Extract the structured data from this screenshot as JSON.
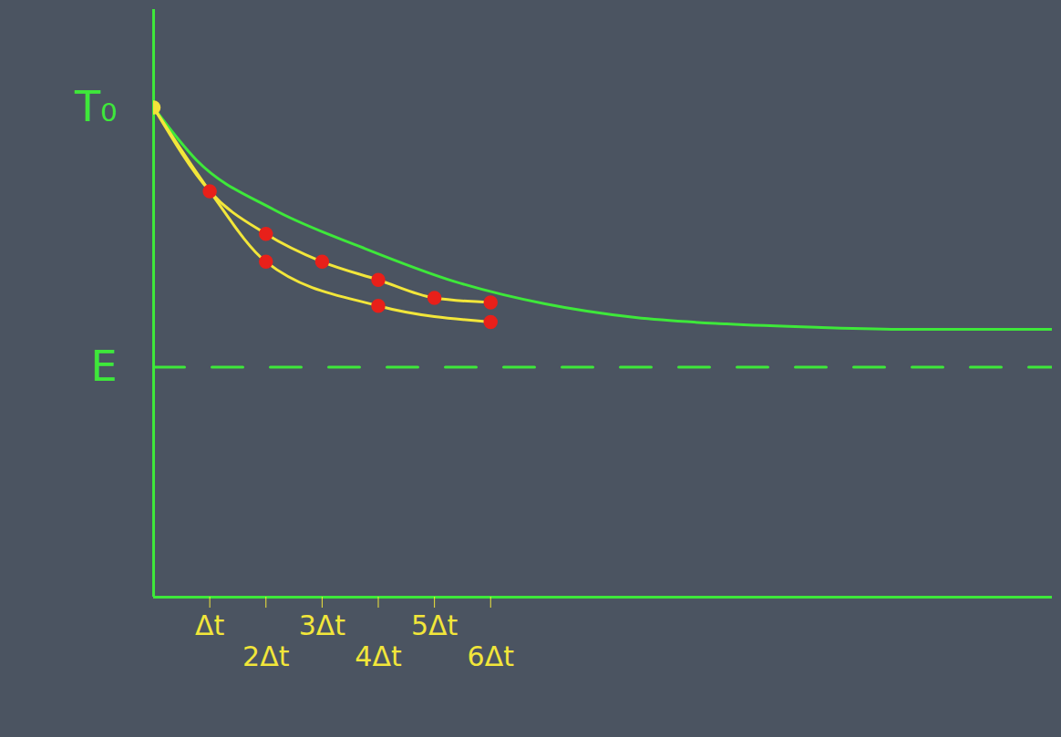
{
  "chart_data": {
    "type": "line",
    "xlim": [
      0,
      16
    ],
    "xticks": [
      {
        "value": 1,
        "label": "Δt"
      },
      {
        "value": 2,
        "label": "2Δt"
      },
      {
        "value": 3,
        "label": "3Δt"
      },
      {
        "value": 4,
        "label": "4Δt"
      },
      {
        "value": 5,
        "label": "5Δt"
      },
      {
        "value": 6,
        "label": "6Δt"
      }
    ],
    "ylim": [
      0,
      12
    ],
    "yticks": [
      {
        "value": 10,
        "label": "T₀"
      },
      {
        "value": 4.7,
        "label": "E"
      }
    ],
    "grid": false,
    "series": [
      {
        "type": "line",
        "color": "#3ee83a",
        "x": [
          0,
          0.76,
          2.13,
          3.74,
          5.35,
          6.97,
          8.58,
          10.2,
          11.8,
          13.4,
          16
        ],
        "values": [
          10,
          8.93,
          7.92,
          7.13,
          6.45,
          5.99,
          5.71,
          5.58,
          5.51,
          5.47,
          5.47
        ]
      },
      {
        "type": "line",
        "color": "#3ee83a",
        "line_style": "dashed",
        "x": [
          0,
          16
        ],
        "values": [
          4.7,
          4.7
        ]
      },
      {
        "type": "line",
        "color": "#f2e63a",
        "x": [
          0,
          1,
          2,
          3,
          4,
          5,
          6
        ],
        "values": [
          10,
          8.29,
          7.42,
          6.85,
          6.48,
          6.11,
          6.02
        ]
      },
      {
        "type": "line",
        "color": "#f2e63a",
        "x": [
          0,
          1,
          2,
          4,
          6
        ],
        "values": [
          10,
          8.29,
          6.85,
          5.95,
          5.62
        ]
      },
      {
        "type": "scatter",
        "color": "#e8201a",
        "marker": "circle",
        "x": [
          1,
          2,
          3,
          4,
          5,
          6,
          2,
          4,
          6
        ],
        "values": [
          8.29,
          7.42,
          6.85,
          6.48,
          6.11,
          6.02,
          6.85,
          5.95,
          5.62
        ]
      },
      {
        "type": "scatter",
        "color": "#f5e23a",
        "marker": "circle",
        "x": [
          0
        ],
        "values": [
          10
        ]
      }
    ]
  }
}
